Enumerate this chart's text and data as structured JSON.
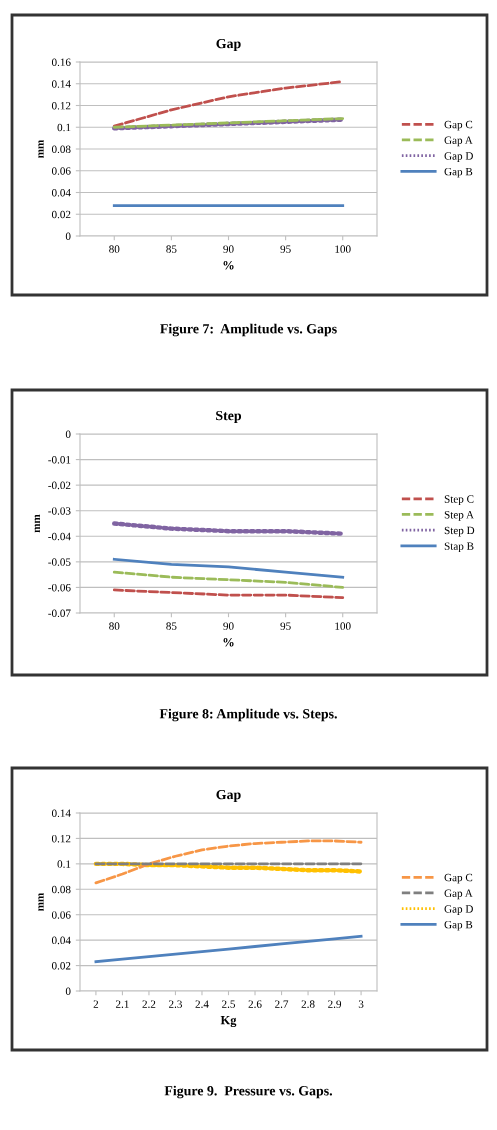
{
  "chart_data": [
    {
      "type": "line",
      "title": "Gap",
      "xlabel": "%",
      "ylabel": "mm",
      "categories": [
        "80",
        "85",
        "90",
        "95",
        "100"
      ],
      "ylim": [
        0,
        0.16
      ],
      "yticks": [
        0,
        0.02,
        0.04,
        0.06,
        0.08,
        0.1,
        0.12,
        0.14,
        0.16
      ],
      "grid": "y",
      "legend": "right",
      "series": [
        {
          "name": "Gap C",
          "color": "#c0504d",
          "line_style": "dashed",
          "values": [
            0.101,
            0.116,
            0.128,
            0.136,
            0.142
          ]
        },
        {
          "name": "Gap A",
          "color": "#9bbb59",
          "line_style": "dashed",
          "values": [
            0.1,
            0.102,
            0.104,
            0.106,
            0.108
          ]
        },
        {
          "name": "Gap D",
          "color": "#8064a2",
          "line_style": "dotted",
          "values": [
            0.099,
            0.101,
            0.103,
            0.105,
            0.107
          ]
        },
        {
          "name": "Gap B",
          "color": "#4f81bd",
          "line_style": "solid",
          "values": [
            0.028,
            0.028,
            0.028,
            0.028,
            0.028
          ]
        }
      ],
      "annotations": [
        "Figure 7:  Amplitude vs. Gaps"
      ]
    },
    {
      "type": "line",
      "title": "Step",
      "xlabel": "%",
      "ylabel": "mm",
      "categories": [
        "80",
        "85",
        "90",
        "95",
        "100"
      ],
      "ylim": [
        -0.07,
        0
      ],
      "yticks": [
        -0.07,
        -0.06,
        -0.05,
        -0.04,
        -0.03,
        -0.02,
        -0.01,
        0
      ],
      "grid": "y",
      "legend": "right",
      "series": [
        {
          "name": "Step C",
          "color": "#c0504d",
          "line_style": "dashed",
          "values": [
            -0.061,
            -0.062,
            -0.063,
            -0.063,
            -0.064
          ]
        },
        {
          "name": "Step A",
          "color": "#9bbb59",
          "line_style": "dashed",
          "values": [
            -0.054,
            -0.056,
            -0.057,
            -0.058,
            -0.06
          ]
        },
        {
          "name": "Step D",
          "color": "#8064a2",
          "line_style": "dotted",
          "values": [
            -0.035,
            -0.037,
            -0.038,
            -0.038,
            -0.039
          ]
        },
        {
          "name": "Stap B",
          "color": "#4f81bd",
          "line_style": "solid",
          "values": [
            -0.049,
            -0.051,
            -0.052,
            -0.054,
            -0.056
          ]
        }
      ],
      "annotations": [
        "Figure 8: Amplitude vs. Steps."
      ]
    },
    {
      "type": "line",
      "title": "Gap",
      "xlabel": "Kg",
      "ylabel": "mm",
      "categories": [
        "2",
        "2.1",
        "2.2",
        "2.3",
        "2.4",
        "2.5",
        "2.6",
        "2.7",
        "2.8",
        "2.9",
        "3"
      ],
      "ylim": [
        0,
        0.14
      ],
      "yticks": [
        0,
        0.02,
        0.04,
        0.06,
        0.08,
        0.1,
        0.12,
        0.14
      ],
      "grid": "y",
      "legend": "right",
      "series": [
        {
          "name": "Gap C",
          "color": "#f79646",
          "line_style": "dashed",
          "values": [
            0.085,
            0.092,
            0.1,
            0.106,
            0.111,
            0.114,
            0.116,
            0.117,
            0.118,
            0.118,
            0.117
          ]
        },
        {
          "name": "Gap A",
          "color": "#7f7f7f",
          "line_style": "dashed",
          "values": [
            0.1,
            0.1,
            0.1,
            0.1,
            0.1,
            0.1,
            0.1,
            0.1,
            0.1,
            0.1,
            0.1
          ]
        },
        {
          "name": "Gap D",
          "color": "#ffc000",
          "line_style": "dotted",
          "values": [
            0.1,
            0.1,
            0.099,
            0.099,
            0.098,
            0.097,
            0.097,
            0.096,
            0.095,
            0.095,
            0.094
          ]
        },
        {
          "name": "Gap B",
          "color": "#4f81bd",
          "line_style": "solid",
          "values": [
            0.023,
            0.025,
            0.027,
            0.029,
            0.031,
            0.033,
            0.035,
            0.037,
            0.039,
            0.041,
            0.043
          ]
        }
      ],
      "annotations": [
        "Figure 9.  Pressure vs. Gaps."
      ]
    }
  ]
}
